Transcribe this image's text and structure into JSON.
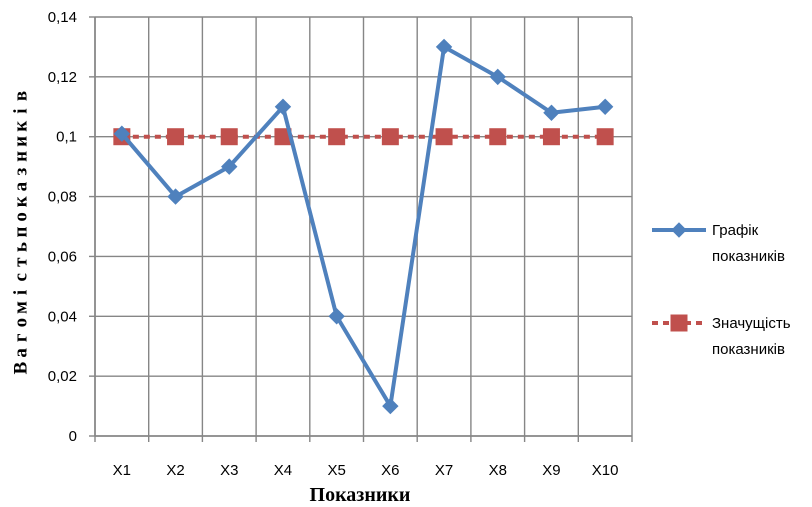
{
  "chart_data": {
    "type": "line",
    "categories": [
      "X1",
      "X2",
      "X3",
      "X4",
      "X5",
      "X6",
      "X7",
      "X8",
      "X9",
      "X10"
    ],
    "series": [
      {
        "name": "Графік показників",
        "color": "#4f81bd",
        "marker": "diamond",
        "line_style": "solid",
        "values": [
          0.101,
          0.08,
          0.09,
          0.11,
          0.04,
          0.01,
          0.13,
          0.12,
          0.108,
          0.11
        ]
      },
      {
        "name": "Значущість показників",
        "color": "#c0504d",
        "marker": "square",
        "line_style": "dashed",
        "values": [
          0.1,
          0.1,
          0.1,
          0.1,
          0.1,
          0.1,
          0.1,
          0.1,
          0.1,
          0.1
        ]
      }
    ],
    "xlabel": "Показники",
    "ylabel": "Вагомість показників",
    "ylim": [
      0,
      0.14
    ],
    "yticks": [
      "0",
      "0,02",
      "0,04",
      "0,06",
      "0,08",
      "0,1",
      "0,12",
      "0,14"
    ],
    "grid": true,
    "legend_position": "right",
    "legend_lines": [
      [
        "Графік",
        "показників"
      ],
      [
        "Значущість",
        "показників"
      ]
    ]
  }
}
